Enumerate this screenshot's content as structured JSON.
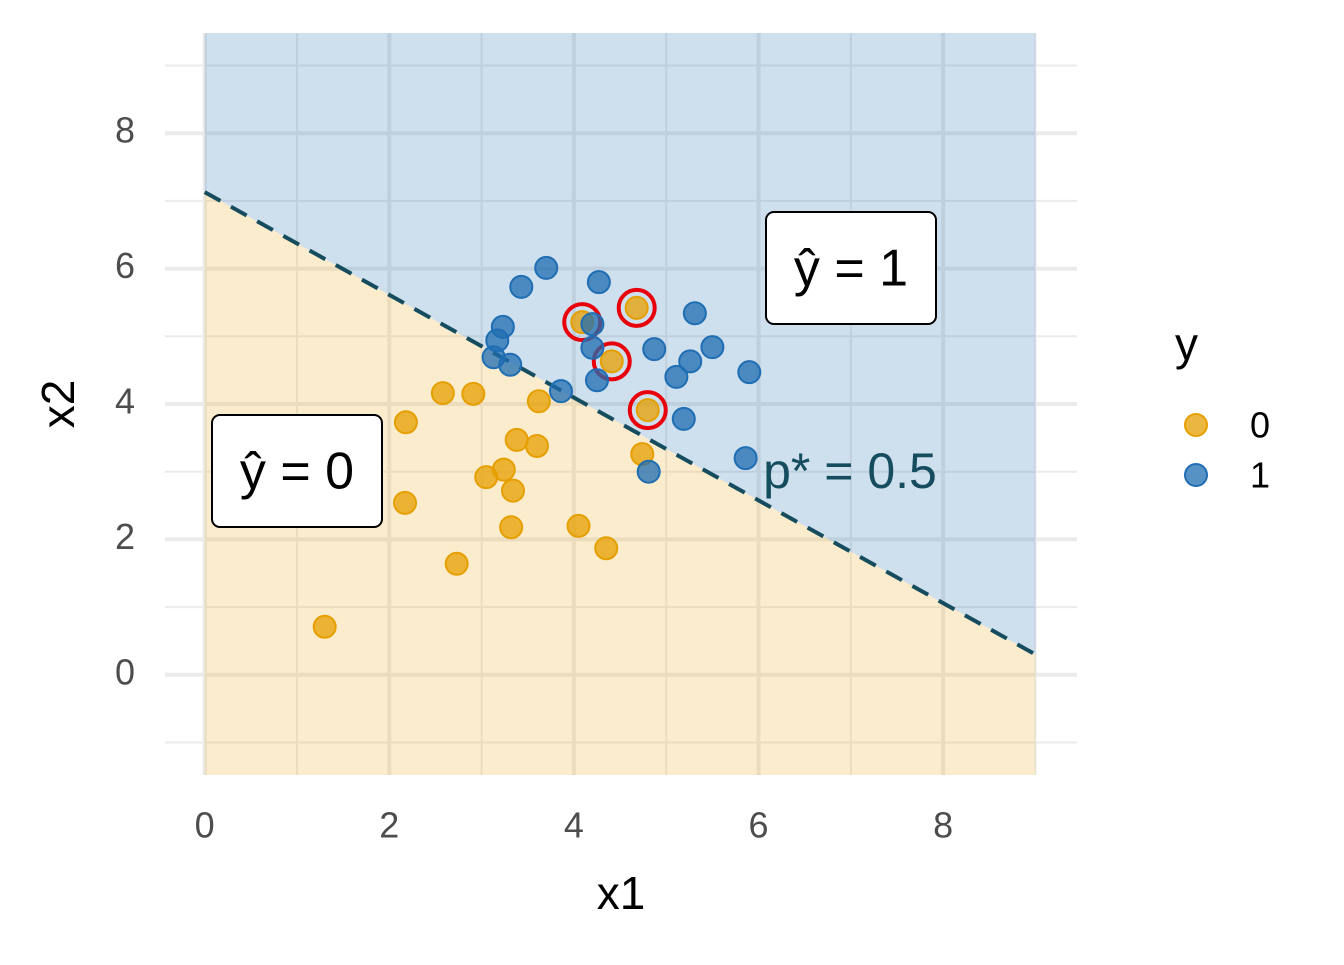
{
  "chart_data": {
    "type": "scatter",
    "xlabel": "x1",
    "ylabel": "x2",
    "xlim": [
      -0.43,
      9.45
    ],
    "ylim": [
      -1.48,
      9.48
    ],
    "xticks": [
      0,
      2,
      4,
      6,
      8
    ],
    "yticks": [
      0,
      2,
      4,
      6,
      8
    ],
    "minor_xticks": [
      1,
      3,
      5,
      7,
      9
    ],
    "minor_yticks": [
      -1,
      1,
      3,
      5,
      7,
      9
    ],
    "grid": true,
    "legend_title": "y",
    "legend": "right",
    "series": [
      {
        "name": "0",
        "color": "#E69F00",
        "x": [
          1.3,
          2.18,
          2.17,
          2.58,
          2.91,
          2.73,
          3.05,
          3.24,
          3.34,
          3.38,
          3.32,
          3.6,
          3.62,
          4.05,
          4.35,
          4.74,
          4.09,
          4.68,
          4.41,
          4.8
        ],
        "y": [
          0.71,
          3.73,
          2.54,
          4.16,
          4.15,
          1.64,
          2.92,
          3.03,
          2.72,
          3.47,
          2.18,
          3.38,
          4.04,
          2.2,
          1.87,
          3.26,
          5.21,
          5.42,
          4.63,
          3.91
        ],
        "highlighted": [
          16,
          17,
          18,
          19
        ]
      },
      {
        "name": "1",
        "color": "#1F6DB2",
        "x": [
          3.43,
          3.7,
          4.27,
          3.23,
          3.17,
          3.13,
          3.31,
          3.86,
          4.2,
          4.2,
          4.25,
          4.87,
          5.31,
          5.5,
          5.26,
          5.11,
          5.19,
          5.9,
          5.86,
          4.81
        ],
        "y": [
          5.73,
          6.01,
          5.8,
          5.14,
          4.94,
          4.69,
          4.58,
          4.19,
          5.18,
          4.83,
          4.35,
          4.81,
          5.34,
          4.84,
          4.63,
          4.4,
          3.78,
          4.47,
          3.2,
          3.0
        ]
      }
    ],
    "highlight_color": "#E8000B",
    "boundary": {
      "label": "p* = 0.5",
      "color": "#154C5E",
      "x": [
        0,
        9
      ],
      "y": [
        7.13,
        0.3
      ]
    },
    "region_labels": [
      "ŷ = 0",
      "ŷ = 1"
    ]
  }
}
